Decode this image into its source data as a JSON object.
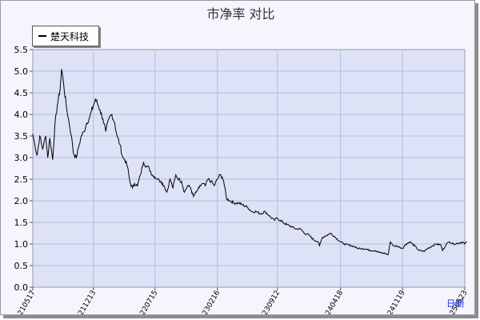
{
  "chart_data": {
    "type": "line",
    "title": "市净率  对比",
    "ylim": [
      0,
      5.5
    ],
    "yticks": [
      "0.0",
      "0.5",
      "1.0",
      "1.5",
      "2.0",
      "2.5",
      "3.0",
      "3.5",
      "4.0",
      "4.5",
      "5.0",
      "5.5"
    ],
    "xticks": [
      "20210517",
      "20211213",
      "20220715",
      "20230216",
      "20230912",
      "20240418",
      "20241119",
      "20250623"
    ],
    "grid": true,
    "legend_position": "top-left",
    "period_label": "日期",
    "series": [
      {
        "name": "楚天科技",
        "color": "#000000",
        "x": [
          "2021-05-17",
          "2021-05-24",
          "2021-06-01",
          "2021-06-10",
          "2021-06-20",
          "2021-07-01",
          "2021-07-08",
          "2021-07-15",
          "2021-07-25",
          "2021-08-01",
          "2021-08-10",
          "2021-08-20",
          "2021-08-25",
          "2021-09-01",
          "2021-09-10",
          "2021-09-20",
          "2021-09-28",
          "2021-10-05",
          "2021-10-15",
          "2021-10-25",
          "2021-11-01",
          "2021-11-10",
          "2021-11-20",
          "2021-12-01",
          "2021-12-13",
          "2021-12-20",
          "2021-12-27",
          "2022-01-05",
          "2022-01-15",
          "2022-01-25",
          "2022-02-05",
          "2022-02-15",
          "2022-02-25",
          "2022-03-05",
          "2022-03-15",
          "2022-03-25",
          "2022-04-01",
          "2022-04-10",
          "2022-04-20",
          "2022-04-28",
          "2022-05-05",
          "2022-05-15",
          "2022-05-25",
          "2022-06-05",
          "2022-06-15",
          "2022-06-25",
          "2022-07-05",
          "2022-07-15",
          "2022-07-25",
          "2022-08-05",
          "2022-08-15",
          "2022-08-25",
          "2022-09-05",
          "2022-09-15",
          "2022-09-25",
          "2022-10-05",
          "2022-10-15",
          "2022-10-25",
          "2022-11-05",
          "2022-11-15",
          "2022-11-25",
          "2022-12-05",
          "2022-12-15",
          "2022-12-25",
          "2023-01-05",
          "2023-01-15",
          "2023-01-25",
          "2023-02-05",
          "2023-02-16",
          "2023-02-25",
          "2023-03-05",
          "2023-03-10",
          "2023-03-20",
          "2023-04-01",
          "2023-04-15",
          "2023-05-01",
          "2023-05-15",
          "2023-06-01",
          "2023-06-15",
          "2023-07-01",
          "2023-07-15",
          "2023-08-01",
          "2023-08-15",
          "2023-09-01",
          "2023-09-12",
          "2023-10-01",
          "2023-10-15",
          "2023-11-01",
          "2023-11-15",
          "2023-12-01",
          "2023-12-15",
          "2024-01-01",
          "2024-01-15",
          "2024-02-01",
          "2024-02-05",
          "2024-02-15",
          "2024-03-01",
          "2024-03-15",
          "2024-04-01",
          "2024-04-18",
          "2024-05-01",
          "2024-05-15",
          "2024-06-01",
          "2024-06-15",
          "2024-07-01",
          "2024-07-15",
          "2024-08-01",
          "2024-08-15",
          "2024-09-01",
          "2024-09-20",
          "2024-09-30",
          "2024-10-08",
          "2024-10-20",
          "2024-11-01",
          "2024-11-19",
          "2024-12-01",
          "2024-12-15",
          "2025-01-01",
          "2025-01-15",
          "2025-02-01",
          "2025-02-15",
          "2025-03-01",
          "2025-03-15",
          "2025-04-01",
          "2025-04-07",
          "2025-04-20",
          "2025-05-01",
          "2025-05-15",
          "2025-06-01",
          "2025-06-15",
          "2025-06-23",
          "2025-06-30"
        ],
        "values": [
          3.55,
          3.3,
          3.05,
          3.5,
          3.2,
          3.5,
          3.0,
          3.45,
          2.95,
          3.7,
          4.2,
          4.6,
          5.05,
          4.7,
          4.2,
          3.8,
          3.5,
          3.1,
          3.0,
          3.3,
          3.5,
          3.6,
          3.8,
          3.95,
          4.2,
          4.35,
          4.25,
          4.1,
          3.9,
          3.6,
          3.9,
          4.0,
          3.8,
          3.5,
          3.3,
          3.0,
          2.95,
          2.8,
          2.4,
          2.3,
          2.4,
          2.35,
          2.6,
          2.9,
          2.8,
          2.75,
          2.6,
          2.55,
          2.5,
          2.45,
          2.35,
          2.2,
          2.5,
          2.3,
          2.6,
          2.5,
          2.45,
          2.2,
          2.35,
          2.3,
          2.1,
          2.2,
          2.3,
          2.4,
          2.35,
          2.5,
          2.45,
          2.35,
          2.5,
          2.6,
          2.55,
          2.45,
          2.05,
          2.0,
          1.95,
          1.95,
          1.9,
          1.85,
          1.75,
          1.75,
          1.7,
          1.75,
          1.65,
          1.55,
          1.6,
          1.5,
          1.45,
          1.4,
          1.35,
          1.35,
          1.25,
          1.2,
          1.1,
          1.05,
          0.95,
          1.15,
          1.2,
          1.25,
          1.15,
          1.05,
          1.0,
          0.98,
          0.95,
          0.9,
          0.9,
          0.88,
          0.85,
          0.85,
          0.8,
          0.78,
          0.75,
          1.05,
          0.95,
          0.95,
          0.9,
          1.0,
          1.05,
          0.95,
          0.85,
          0.83,
          0.9,
          0.95,
          1.0,
          0.98,
          0.85,
          1.0,
          1.05,
          1.0,
          1.02,
          1.05,
          1.0,
          1.05
        ]
      }
    ]
  }
}
